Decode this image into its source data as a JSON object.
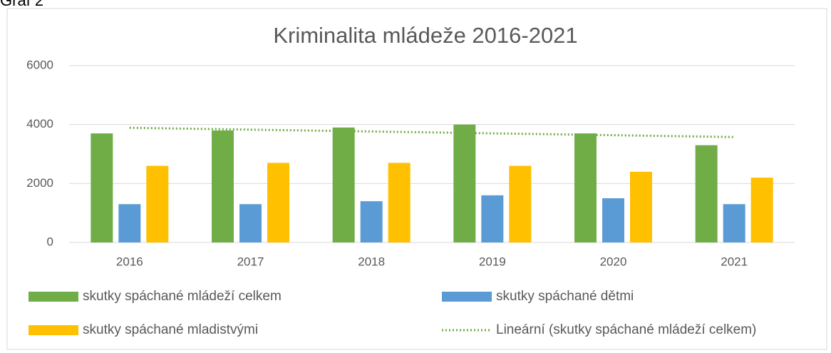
{
  "caption": "Graf 2",
  "chart_data": {
    "type": "bar",
    "title": "Kriminalita mládeže 2016-2021",
    "categories": [
      "2016",
      "2017",
      "2018",
      "2019",
      "2020",
      "2021"
    ],
    "series": [
      {
        "name": "skutky spáchané mládeží celkem",
        "color": "#70ad47",
        "values": [
          3700,
          3800,
          3900,
          4000,
          3700,
          3300
        ]
      },
      {
        "name": "skutky spáchané dětmi",
        "color": "#5b9bd5",
        "values": [
          1300,
          1300,
          1400,
          1600,
          1500,
          1300
        ]
      },
      {
        "name": "skutky spáchané mladistvými",
        "color": "#ffc000",
        "values": [
          2600,
          2700,
          2700,
          2600,
          2400,
          2200
        ]
      }
    ],
    "trendline": {
      "name": "Lineární (skutky spáchané mládeží celkem)",
      "color": "#70ad47",
      "style": "dotted"
    },
    "ylim": [
      0,
      6000
    ],
    "yticks": [
      0,
      2000,
      4000,
      6000
    ],
    "grid": true,
    "legend": "bottom"
  }
}
